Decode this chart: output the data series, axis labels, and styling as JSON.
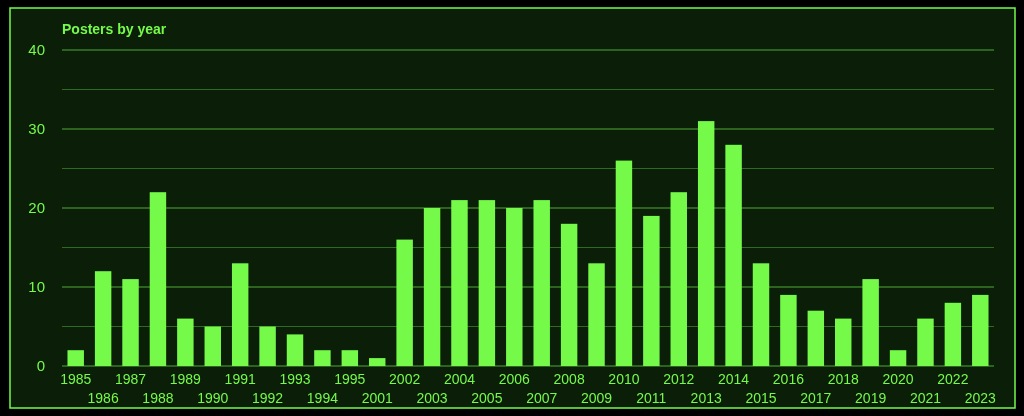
{
  "chart_data": {
    "type": "bar",
    "title": "Posters by year",
    "categories": [
      "1985",
      "1986",
      "1987",
      "1988",
      "1989",
      "1990",
      "1991",
      "1992",
      "1993",
      "1994",
      "1995",
      "2001",
      "2002",
      "2003",
      "2004",
      "2005",
      "2006",
      "2007",
      "2008",
      "2009",
      "2010",
      "2011",
      "2012",
      "2013",
      "2014",
      "2015",
      "2016",
      "2017",
      "2018",
      "2019",
      "2020",
      "2021",
      "2022",
      "2023"
    ],
    "values": [
      2,
      12,
      11,
      22,
      6,
      5,
      13,
      5,
      4,
      2,
      2,
      1,
      16,
      20,
      21,
      21,
      20,
      21,
      18,
      13,
      26,
      19,
      22,
      31,
      28,
      13,
      9,
      7,
      6,
      11,
      2,
      6,
      8,
      9
    ],
    "color": "#76fa4a",
    "ylim": [
      0,
      40
    ],
    "yticks": [
      0,
      {
        "value": 5,
        "label": null
      },
      10,
      {
        "value": 15,
        "label": null
      },
      20,
      {
        "value": 25,
        "label": null
      },
      30,
      {
        "value": 35,
        "label": null
      },
      40
    ],
    "grid": true
  }
}
